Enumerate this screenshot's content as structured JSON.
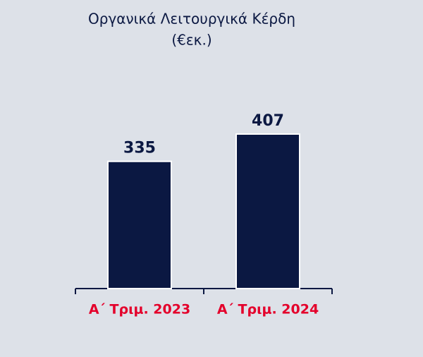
{
  "chart_data": {
    "type": "bar",
    "title": "Οργανικά Λειτουργικά Κέρδη",
    "subtitle": "(€εκ.)",
    "categories": [
      "Α΄ Τριμ. 2023",
      "Α΄ Τριμ. 2024"
    ],
    "values": [
      335,
      407
    ],
    "color": "#0b1842"
  }
}
